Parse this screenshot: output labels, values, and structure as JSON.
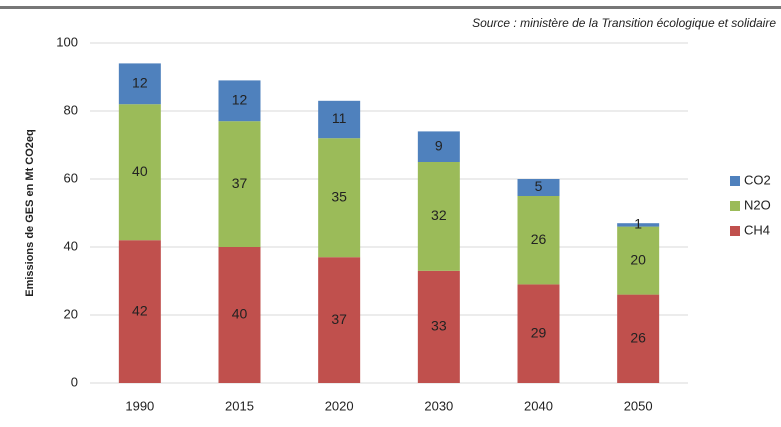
{
  "chart_data": {
    "type": "stacked_bar",
    "source": "Source : ministère de la Transition écologique et solidaire",
    "y_label": "Emissions de GES en Mt CO2eq",
    "categories": [
      "1990",
      "2015",
      "2020",
      "2030",
      "2040",
      "2050"
    ],
    "series": [
      {
        "name": "CH4",
        "color": "#c0504d",
        "values": [
          42,
          40,
          37,
          33,
          29,
          26
        ]
      },
      {
        "name": "N2O",
        "color": "#9bbb59",
        "values": [
          40,
          37,
          35,
          32,
          26,
          20
        ]
      },
      {
        "name": "CO2",
        "color": "#4f81bd",
        "values": [
          12,
          12,
          11,
          9,
          5,
          1
        ]
      }
    ],
    "ylim": [
      0,
      100
    ],
    "yticks": [
      0,
      20,
      40,
      60,
      80,
      100
    ],
    "grid": true,
    "legend": "right"
  }
}
